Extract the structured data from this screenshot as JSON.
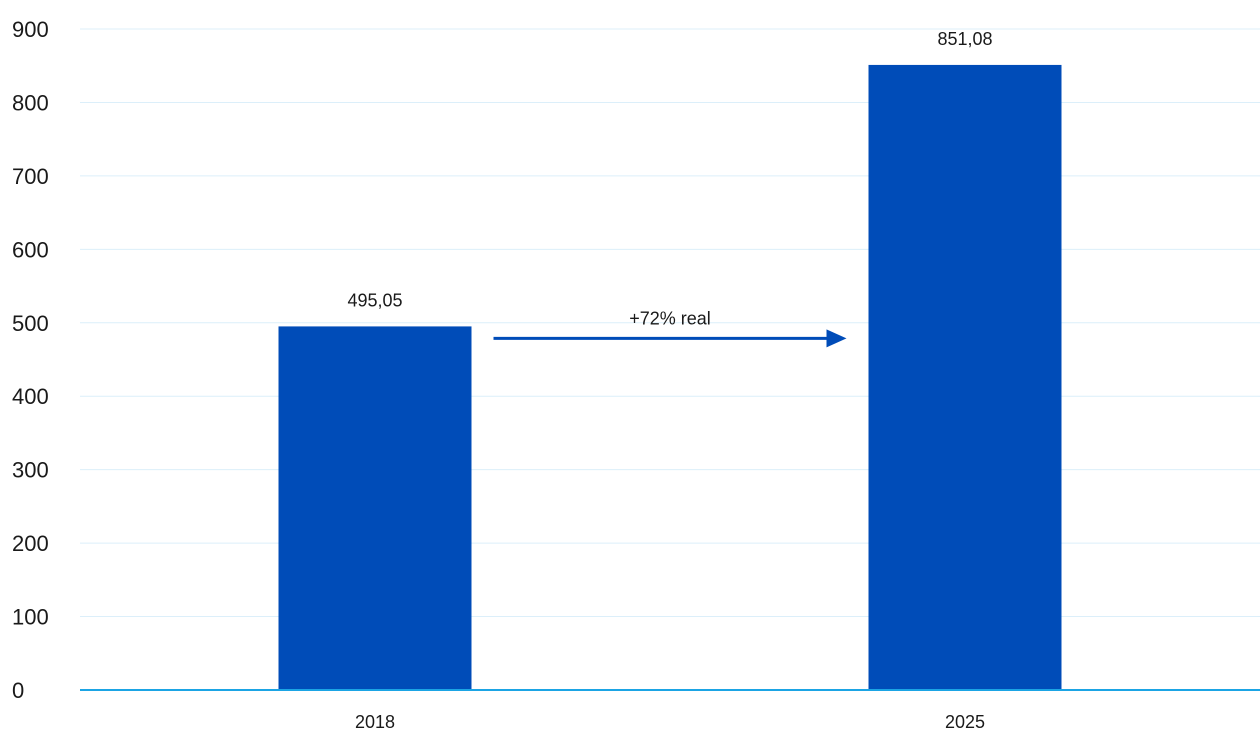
{
  "chart_data": {
    "type": "bar",
    "categories": [
      "2018",
      "2025"
    ],
    "values": [
      495.05,
      851.08
    ],
    "value_labels": [
      "495,05",
      "851,08"
    ],
    "title": "",
    "xlabel": "",
    "ylabel": "",
    "ylim": [
      0,
      900
    ],
    "yticks": [
      0,
      100,
      200,
      300,
      400,
      500,
      600,
      700,
      800,
      900
    ],
    "grid": true,
    "legend": "none",
    "colors": {
      "bar": "#004CB8",
      "grid": "#DCEFFA",
      "baseline": "#1BA4E4",
      "arrow": "#004CB8"
    },
    "annotations": [
      {
        "text": "+72% real",
        "from_category": "2018",
        "to_category": "2025",
        "type": "arrow"
      }
    ]
  }
}
